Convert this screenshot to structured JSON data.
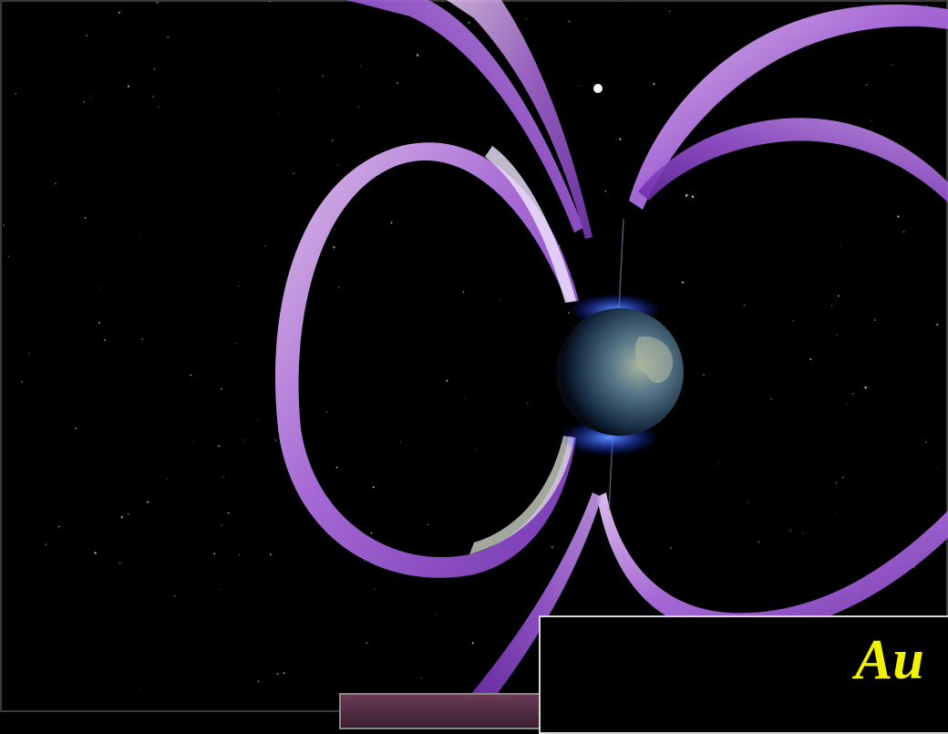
{
  "scene": {
    "subject": "earth-magnetosphere-illustration",
    "colors": {
      "background": "#000000",
      "field_lines": "#b070e0",
      "aurora_glow": "#2050ff",
      "earth": "#4a6a8a",
      "caption_text": "#f2f200",
      "caption_border": "#d8d8d8"
    }
  },
  "caption": {
    "text": "Au"
  }
}
